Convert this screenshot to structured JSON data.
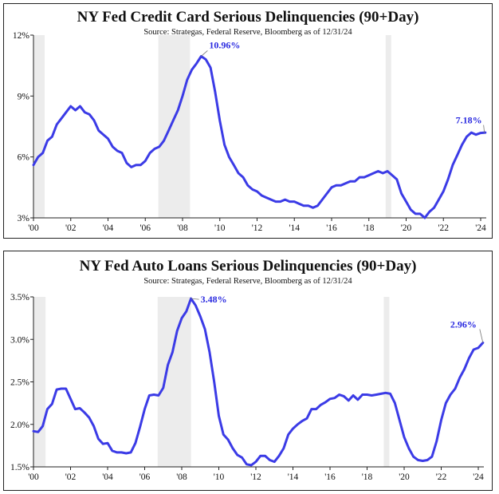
{
  "chart_data": [
    {
      "type": "line",
      "title": "NY Fed Credit Card Serious Delinquencies  (90+Day)",
      "subtitle": "Source: Strategas, Federal Reserve, Bloomberg as of 12/31/24",
      "ylim": [
        3,
        12
      ],
      "yticks": [
        "3%",
        "6%",
        "9%",
        "12%"
      ],
      "ytick_values": [
        3,
        6,
        9,
        12
      ],
      "xlim": [
        2000,
        2024.3
      ],
      "xticks": [
        "'00",
        "'02",
        "'04",
        "'06",
        "'08",
        "'10",
        "'12",
        "'14",
        "'16",
        "'18",
        "'20",
        "'22",
        "'24"
      ],
      "xtick_values": [
        2000,
        2002,
        2004,
        2006,
        2008,
        2010,
        2012,
        2014,
        2016,
        2018,
        2020,
        2022,
        2024
      ],
      "recessions": [
        [
          2000.0,
          2000.6
        ],
        [
          2006.7,
          2008.4
        ],
        [
          2018.9,
          2019.2
        ]
      ],
      "line_color": "#3b3be6",
      "recession_color": "#ececec",
      "series": [
        {
          "x": [
            2000.0,
            2000.25,
            2000.5,
            2000.75,
            2001.0,
            2001.25,
            2001.5,
            2001.75,
            2002.0,
            2002.25,
            2002.5,
            2002.75,
            2003.0,
            2003.25,
            2003.5,
            2003.75,
            2004.0,
            2004.25,
            2004.5,
            2004.75,
            2005.0,
            2005.25,
            2005.5,
            2005.75,
            2006.0,
            2006.25,
            2006.5,
            2006.75,
            2007.0,
            2007.25,
            2007.5,
            2007.75,
            2008.0,
            2008.25,
            2008.5,
            2008.75,
            2009.0,
            2009.25,
            2009.5,
            2009.75,
            2010.0,
            2010.25,
            2010.5,
            2010.75,
            2011.0,
            2011.25,
            2011.5,
            2011.75,
            2012.0,
            2012.25,
            2012.5,
            2012.75,
            2013.0,
            2013.25,
            2013.5,
            2013.75,
            2014.0,
            2014.25,
            2014.5,
            2014.75,
            2015.0,
            2015.25,
            2015.5,
            2015.75,
            2016.0,
            2016.25,
            2016.5,
            2016.75,
            2017.0,
            2017.25,
            2017.5,
            2017.75,
            2018.0,
            2018.25,
            2018.5,
            2018.75,
            2019.0,
            2019.25,
            2019.5,
            2019.75,
            2020.0,
            2020.25,
            2020.5,
            2020.75,
            2021.0,
            2021.25,
            2021.5,
            2021.75,
            2022.0,
            2022.25,
            2022.5,
            2022.75,
            2023.0,
            2023.25,
            2023.5,
            2023.75,
            2024.0,
            2024.25
          ],
          "y": [
            5.6,
            6.0,
            6.2,
            6.8,
            7.0,
            7.6,
            7.9,
            8.2,
            8.5,
            8.3,
            8.5,
            8.2,
            8.1,
            7.8,
            7.3,
            7.1,
            6.9,
            6.5,
            6.3,
            6.2,
            5.7,
            5.5,
            5.6,
            5.6,
            5.8,
            6.2,
            6.4,
            6.5,
            6.8,
            7.3,
            7.8,
            8.3,
            9.0,
            9.8,
            10.3,
            10.6,
            10.96,
            10.8,
            10.4,
            9.2,
            7.8,
            6.6,
            6.0,
            5.6,
            5.2,
            5.0,
            4.6,
            4.4,
            4.3,
            4.1,
            4.0,
            3.9,
            3.8,
            3.8,
            3.9,
            3.8,
            3.8,
            3.7,
            3.6,
            3.6,
            3.5,
            3.6,
            3.9,
            4.2,
            4.5,
            4.6,
            4.6,
            4.7,
            4.8,
            4.8,
            5.0,
            5.0,
            5.1,
            5.2,
            5.3,
            5.2,
            5.3,
            5.1,
            4.9,
            4.2,
            3.8,
            3.4,
            3.2,
            3.2,
            3.0,
            3.3,
            3.5,
            3.9,
            4.3,
            4.9,
            5.6,
            6.1,
            6.6,
            7.0,
            7.2,
            7.1,
            7.18,
            7.2
          ]
        }
      ],
      "annotations": [
        {
          "text": "10.96%",
          "x": 2009.0,
          "y": 10.96
        },
        {
          "text": "7.18%",
          "x": 2024.2,
          "y": 7.18
        }
      ]
    },
    {
      "type": "line",
      "title": "NY Fed Auto Loans Serious Delinquencies  (90+Day)",
      "subtitle": "Source: Strategas, Federal Reserve, Bloomberg as of 12/31/24",
      "ylim": [
        1.5,
        3.5
      ],
      "yticks": [
        "1.5%",
        "2.0%",
        "2.5%",
        "3.0%",
        "3.5%"
      ],
      "ytick_values": [
        1.5,
        2.0,
        2.5,
        3.0,
        3.5
      ],
      "xlim": [
        2000,
        2024.3
      ],
      "xticks": [
        "'00",
        "'02",
        "'04",
        "'06",
        "'08",
        "'10",
        "'12",
        "'14",
        "'16",
        "'18",
        "'20",
        "'22",
        "'24"
      ],
      "xtick_values": [
        2000,
        2002,
        2004,
        2006,
        2008,
        2010,
        2012,
        2014,
        2016,
        2018,
        2020,
        2022,
        2024
      ],
      "recessions": [
        [
          2000.0,
          2000.65
        ],
        [
          2006.7,
          2008.5
        ],
        [
          2018.9,
          2019.2
        ]
      ],
      "line_color": "#3b3be6",
      "recession_color": "#ececec",
      "series": [
        {
          "x": [
            2000.0,
            2000.25,
            2000.5,
            2000.75,
            2001.0,
            2001.25,
            2001.5,
            2001.75,
            2002.0,
            2002.25,
            2002.5,
            2002.75,
            2003.0,
            2003.25,
            2003.5,
            2003.75,
            2004.0,
            2004.25,
            2004.5,
            2004.75,
            2005.0,
            2005.25,
            2005.5,
            2005.75,
            2006.0,
            2006.25,
            2006.5,
            2006.75,
            2007.0,
            2007.25,
            2007.5,
            2007.75,
            2008.0,
            2008.25,
            2008.5,
            2008.75,
            2009.0,
            2009.25,
            2009.5,
            2009.75,
            2010.0,
            2010.25,
            2010.5,
            2010.75,
            2011.0,
            2011.25,
            2011.5,
            2011.75,
            2012.0,
            2012.25,
            2012.5,
            2012.75,
            2013.0,
            2013.25,
            2013.5,
            2013.75,
            2014.0,
            2014.25,
            2014.5,
            2014.75,
            2015.0,
            2015.25,
            2015.5,
            2015.75,
            2016.0,
            2016.25,
            2016.5,
            2016.75,
            2017.0,
            2017.25,
            2017.5,
            2017.75,
            2018.0,
            2018.25,
            2018.5,
            2018.75,
            2019.0,
            2019.25,
            2019.5,
            2019.75,
            2020.0,
            2020.25,
            2020.5,
            2020.75,
            2021.0,
            2021.25,
            2021.5,
            2021.75,
            2022.0,
            2022.25,
            2022.5,
            2022.75,
            2023.0,
            2023.25,
            2023.5,
            2023.75,
            2024.0,
            2024.25
          ],
          "y": [
            1.92,
            1.91,
            1.98,
            2.18,
            2.24,
            2.41,
            2.42,
            2.42,
            2.3,
            2.18,
            2.19,
            2.14,
            2.08,
            1.98,
            1.83,
            1.77,
            1.78,
            1.69,
            1.67,
            1.67,
            1.66,
            1.67,
            1.78,
            1.97,
            2.18,
            2.34,
            2.35,
            2.34,
            2.43,
            2.7,
            2.85,
            3.1,
            3.25,
            3.33,
            3.48,
            3.4,
            3.27,
            3.12,
            2.85,
            2.5,
            2.1,
            1.88,
            1.82,
            1.72,
            1.64,
            1.61,
            1.53,
            1.52,
            1.56,
            1.63,
            1.63,
            1.58,
            1.56,
            1.63,
            1.72,
            1.88,
            1.95,
            2.0,
            2.04,
            2.07,
            2.18,
            2.18,
            2.23,
            2.26,
            2.3,
            2.31,
            2.35,
            2.33,
            2.28,
            2.34,
            2.29,
            2.35,
            2.35,
            2.34,
            2.35,
            2.36,
            2.37,
            2.36,
            2.25,
            2.05,
            1.85,
            1.72,
            1.62,
            1.58,
            1.57,
            1.58,
            1.62,
            1.8,
            2.05,
            2.25,
            2.35,
            2.42,
            2.55,
            2.65,
            2.78,
            2.88,
            2.9,
            2.96
          ]
        }
      ],
      "annotations": [
        {
          "text": "3.48%",
          "x": 2008.5,
          "y": 3.48
        },
        {
          "text": "2.96%",
          "x": 2024.25,
          "y": 2.96
        }
      ]
    }
  ]
}
